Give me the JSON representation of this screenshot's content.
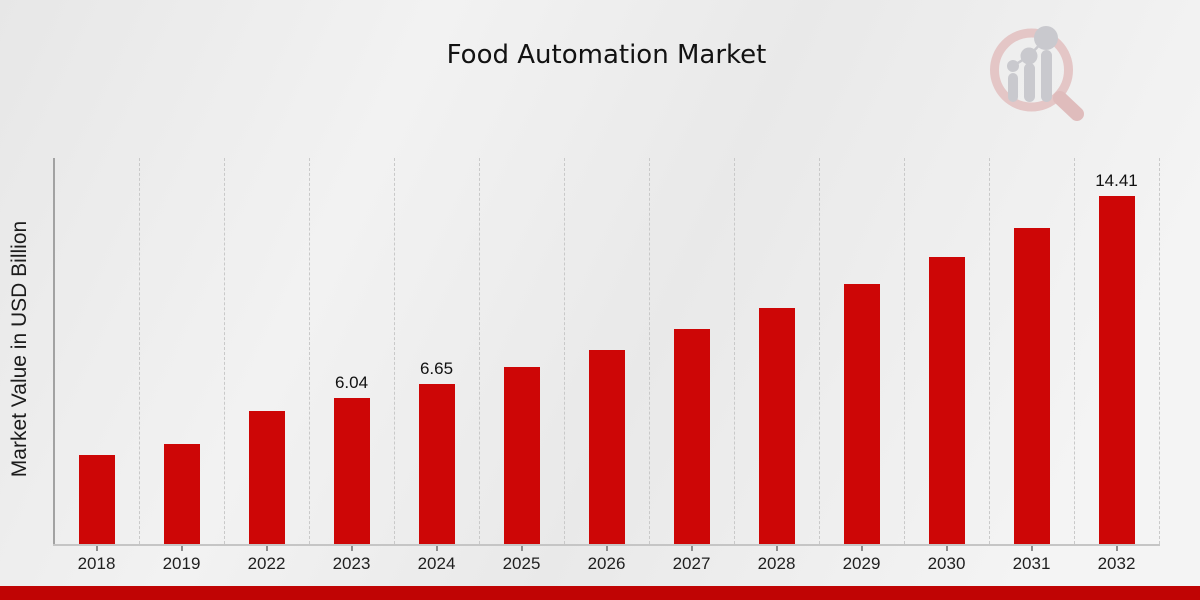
{
  "title": "Food Automation Market",
  "y_axis_label": "Market Value in USD Billion",
  "colors": {
    "bar": "#cd0606",
    "footer_bar": "#c00404",
    "background": "#ededed",
    "gridline": "#c9c9c9",
    "axis": "#a2a2a2",
    "text": "#1a1a1a"
  },
  "chart_data": {
    "type": "bar",
    "title": "Food Automation Market",
    "xlabel": "",
    "ylabel": "Market Value in USD Billion",
    "ylim": [
      0,
      16
    ],
    "grid": "vertical dashed gridlines between categories, no horizontal gridlines, no y tick labels",
    "legend": "none",
    "categories": [
      "2018",
      "2019",
      "2022",
      "2023",
      "2024",
      "2025",
      "2026",
      "2027",
      "2028",
      "2029",
      "2030",
      "2031",
      "2032"
    ],
    "values": [
      3.7,
      4.15,
      5.5,
      6.04,
      6.65,
      7.32,
      8.06,
      8.9,
      9.79,
      10.78,
      11.88,
      13.08,
      14.41
    ],
    "data_labels": {
      "2023": "6.04",
      "2024": "6.65",
      "2032": "14.41"
    }
  }
}
